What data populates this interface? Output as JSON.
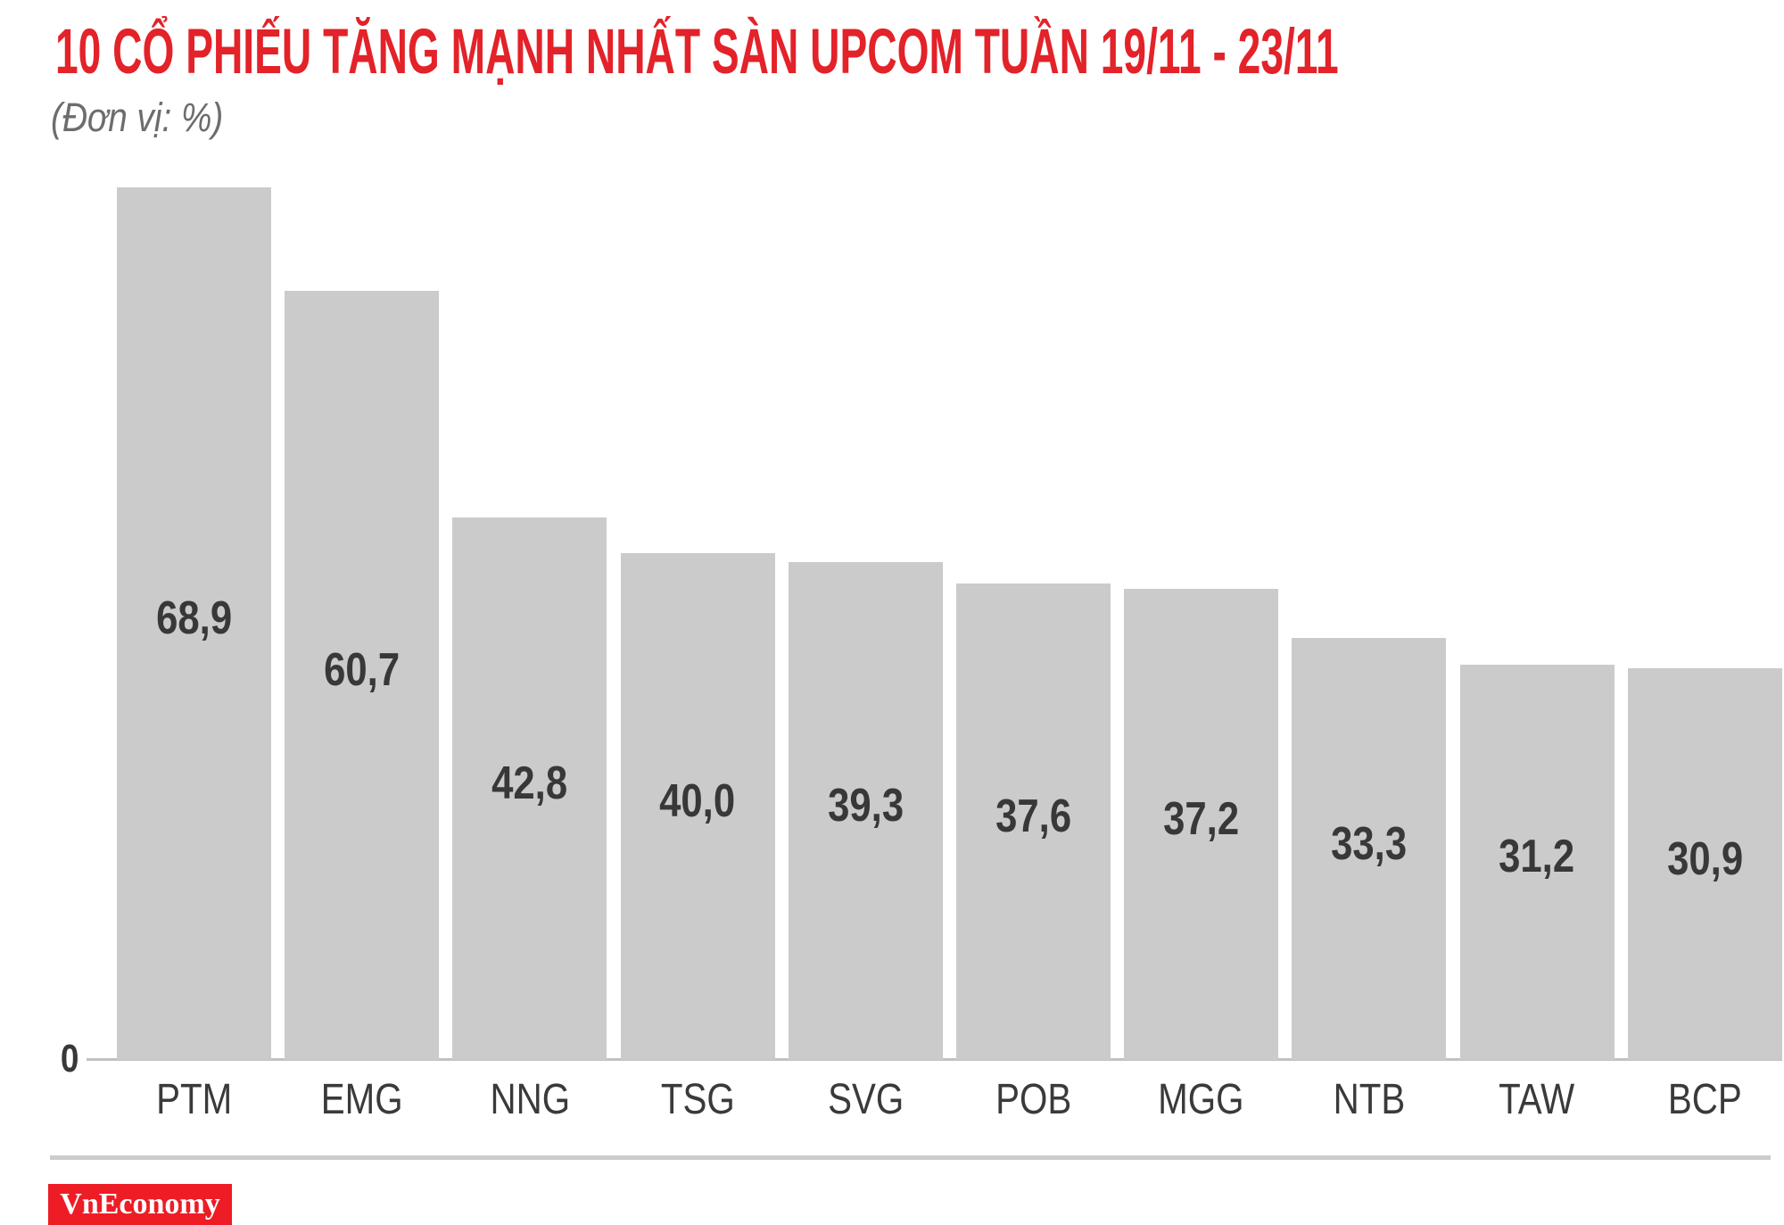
{
  "title": "10 CỔ PHIẾU TĂNG MẠNH NHẤT SÀN UPCOM TUẦN 19/11 - 23/11",
  "subtitle": "(Đơn vị: %)",
  "y_axis": {
    "zero_label": "0"
  },
  "footer": {
    "brand": "VnEconomy"
  },
  "colors": {
    "title_red": "#e32229",
    "logo_red": "#ee1c25",
    "bar_gray": "#cbcbcb",
    "label_dark": "#383838",
    "tick_dark": "#3a3a3a",
    "subtitle_gray": "#6d6d6d",
    "axis_gray": "#c2c2c2",
    "divider_gray": "#cccccc"
  },
  "chart_data": {
    "type": "bar",
    "title": "10 CỔ PHIẾU TĂNG MẠNH NHẤT SÀN UPCOM TUẦN 19/11 - 23/11",
    "subtitle": "(Đơn vị: %)",
    "unit": "%",
    "categories": [
      "PTM",
      "EMG",
      "NNG",
      "TSG",
      "SVG",
      "POB",
      "MGG",
      "NTB",
      "TAW",
      "BCP"
    ],
    "values": [
      68.9,
      60.7,
      42.8,
      40.0,
      39.3,
      37.6,
      37.2,
      33.3,
      31.2,
      30.9
    ],
    "value_labels": [
      "68,9",
      "60,7",
      "42,8",
      "40,0",
      "39,3",
      "37,6",
      "37,2",
      "33,3",
      "31,2",
      "30,9"
    ],
    "xlabel": "",
    "ylabel": "%",
    "ylim": [
      0,
      70
    ],
    "grid": false,
    "legend": false,
    "bar_color": "#cbcbcb",
    "value_label_position": "inside-middle",
    "decimal_separator": ","
  }
}
